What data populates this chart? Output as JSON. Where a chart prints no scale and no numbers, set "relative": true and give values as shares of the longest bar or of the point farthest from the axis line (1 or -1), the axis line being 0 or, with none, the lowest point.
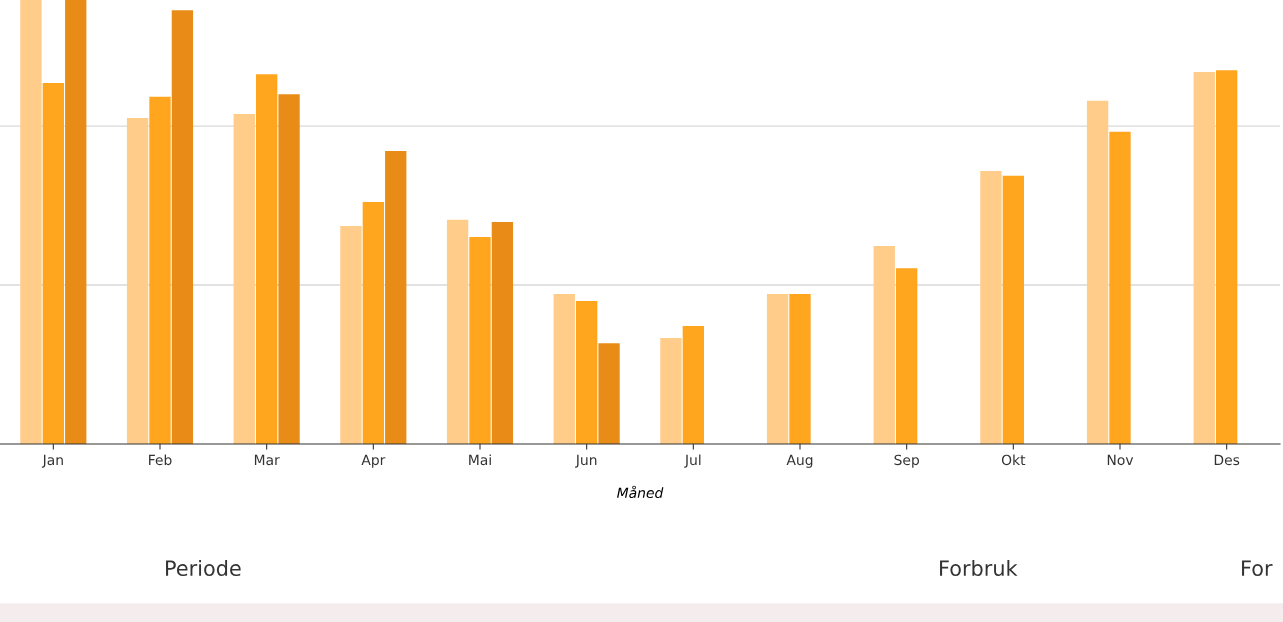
{
  "chart_data": {
    "type": "bar",
    "relative": true,
    "xlabel": "Måned",
    "categories": [
      "Jan",
      "Feb",
      "Mar",
      "Apr",
      "Mai",
      "Jun",
      "Jul",
      "Aug",
      "Sep",
      "Okt",
      "Nov",
      "Des"
    ],
    "series": [
      {
        "color": "#ffcc8a",
        "values": [
          1,
          0.734,
          0.743,
          0.491,
          0.505,
          0.338,
          0.239,
          0.338,
          0.446,
          0.615,
          0.773,
          0.838
        ]
      },
      {
        "color": "#ffa51e",
        "values": [
          0.813,
          0.782,
          0.833,
          0.545,
          0.466,
          0.322,
          0.266,
          0.338,
          0.396,
          0.604,
          0.703,
          0.842
        ]
      },
      {
        "color": "#e88c17",
        "values": [
          1,
          0.977,
          0.788,
          0.66,
          0.5,
          0.227,
          null,
          null,
          null,
          null,
          null,
          null
        ]
      }
    ],
    "ref_lines": [
      {
        "axis": "y",
        "value": 0.358,
        "color": "#d9d9d9"
      },
      {
        "axis": "y",
        "value": 0.716,
        "color": "#d9d9d9"
      }
    ],
    "grid": false,
    "legend": false,
    "annotations": [
      "Periode",
      "Forbruk",
      "For"
    ]
  }
}
